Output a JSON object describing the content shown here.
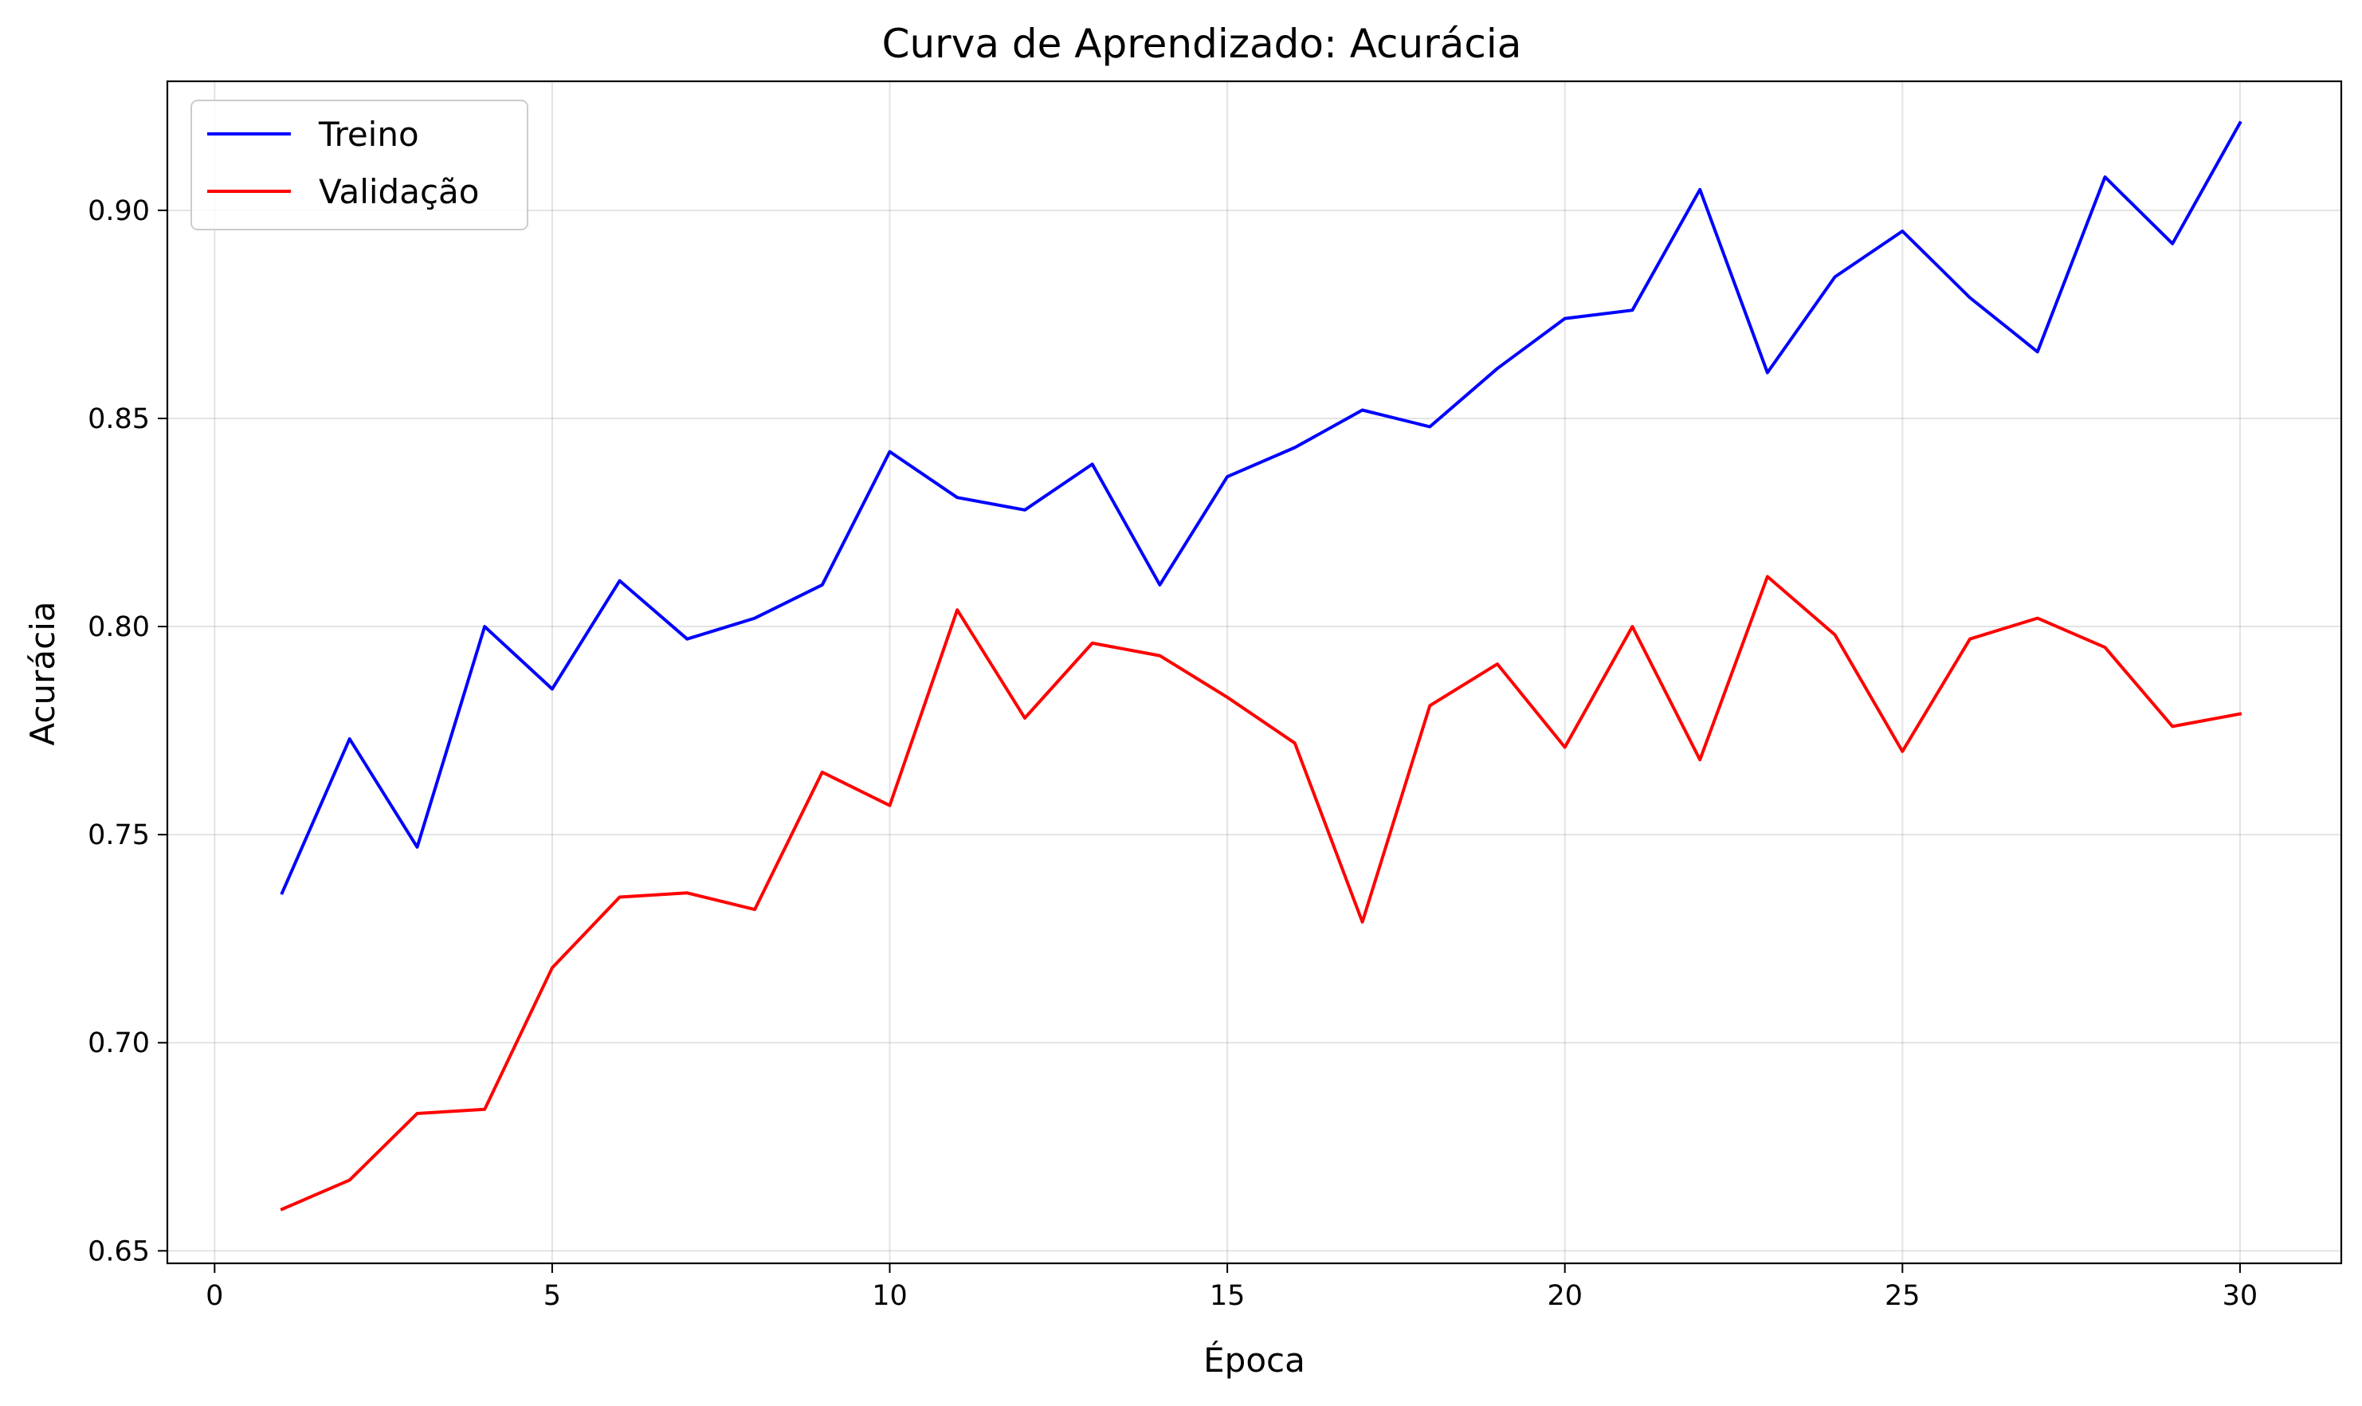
{
  "chart_data": {
    "type": "line",
    "title": "Curva de Aprendizado: Acurácia",
    "xlabel": "Época",
    "ylabel": "Acurácia",
    "xlim": [
      -0.7,
      31.5
    ],
    "ylim": [
      0.647,
      0.931
    ],
    "xticks": [
      0,
      5,
      10,
      15,
      20,
      25,
      30
    ],
    "xtick_labels": [
      "0",
      "5",
      "10",
      "15",
      "20",
      "25",
      "30"
    ],
    "yticks": [
      0.65,
      0.7,
      0.75,
      0.8,
      0.85,
      0.9
    ],
    "ytick_labels": [
      "0.65",
      "0.70",
      "0.75",
      "0.80",
      "0.85",
      "0.90"
    ],
    "grid": true,
    "legend_position": "upper-left",
    "x": [
      1,
      2,
      3,
      4,
      5,
      6,
      7,
      8,
      9,
      10,
      11,
      12,
      13,
      14,
      15,
      16,
      17,
      18,
      19,
      20,
      21,
      22,
      23,
      24,
      25,
      26,
      27,
      28,
      29,
      30
    ],
    "series": [
      {
        "name": "Treino",
        "color": "#0000ff",
        "values": [
          0.736,
          0.773,
          0.747,
          0.8,
          0.785,
          0.811,
          0.797,
          0.802,
          0.81,
          0.842,
          0.831,
          0.828,
          0.839,
          0.81,
          0.836,
          0.843,
          0.852,
          0.848,
          0.862,
          0.874,
          0.876,
          0.905,
          0.861,
          0.884,
          0.895,
          0.879,
          0.866,
          0.908,
          0.892,
          0.921
        ]
      },
      {
        "name": "Validação",
        "color": "#ff0000",
        "values": [
          0.66,
          0.667,
          0.683,
          0.684,
          0.718,
          0.735,
          0.736,
          0.732,
          0.765,
          0.757,
          0.804,
          0.778,
          0.796,
          0.793,
          0.783,
          0.772,
          0.729,
          0.781,
          0.791,
          0.771,
          0.8,
          0.768,
          0.812,
          0.798,
          0.77,
          0.797,
          0.802,
          0.795,
          0.776,
          0.779
        ]
      }
    ]
  }
}
